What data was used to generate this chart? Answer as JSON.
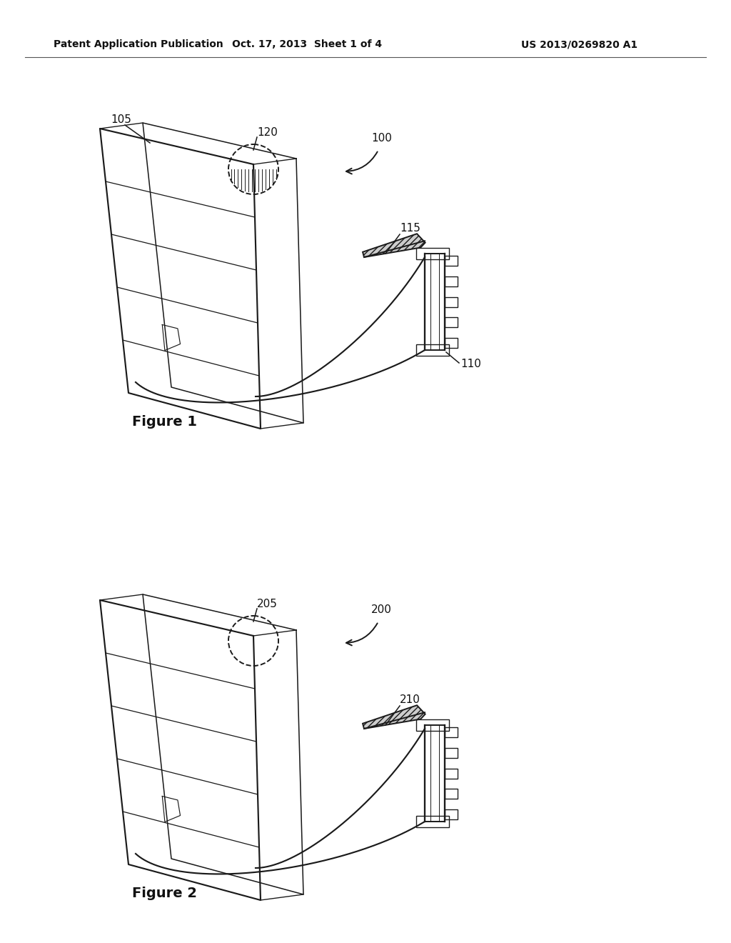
{
  "background_color": "#ffffff",
  "header_left": "Patent Application Publication",
  "header_mid": "Oct. 17, 2013  Sheet 1 of 4",
  "header_right": "US 2013/0269820 A1",
  "line_color": "#1a1a1a",
  "fig1_label": "Figure 1",
  "fig2_label": "Figure 2"
}
